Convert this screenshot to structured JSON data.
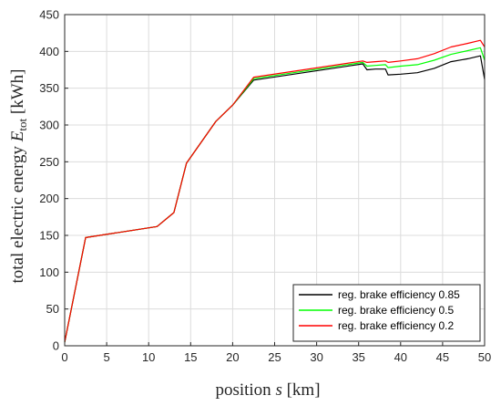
{
  "chart_data": {
    "type": "line",
    "title": "",
    "xlabel": {
      "prefix": "position ",
      "symbol": "s",
      "unit": " [km]"
    },
    "ylabel": {
      "prefix": "total electric energy ",
      "symbol": "E",
      "subscript": "tot",
      "unit": " [kWh]"
    },
    "xlim": [
      0,
      50
    ],
    "ylim": [
      0,
      450
    ],
    "xticks": [
      0,
      5,
      10,
      15,
      20,
      25,
      30,
      35,
      40,
      45,
      50
    ],
    "yticks": [
      0,
      50,
      100,
      150,
      200,
      250,
      300,
      350,
      400,
      450
    ],
    "grid": true,
    "legend": {
      "position": "bottom-right"
    },
    "series": [
      {
        "name": "reg. brake efficiency 0.85",
        "color": "#000000",
        "x": [
          0,
          2.5,
          11,
          13,
          14.5,
          18,
          20,
          22.5,
          35.5,
          36,
          37,
          38.2,
          38.5,
          40,
          42,
          44,
          46,
          48,
          49.5,
          50
        ],
        "y": [
          5,
          147,
          162,
          181,
          248,
          305,
          327,
          361,
          383,
          375,
          376,
          376,
          368,
          369,
          371,
          377,
          386,
          390,
          394,
          362
        ]
      },
      {
        "name": "reg. brake efficiency 0.5",
        "color": "#00ff00",
        "x": [
          0,
          2.5,
          11,
          13,
          14.5,
          18,
          20,
          22.5,
          35.5,
          36,
          37,
          38.2,
          38.5,
          40,
          42,
          44,
          46,
          48,
          49.5,
          50
        ],
        "y": [
          5,
          147,
          162,
          181,
          248,
          305,
          327,
          363,
          385,
          380,
          381,
          382,
          378,
          380,
          382,
          388,
          396,
          401,
          405,
          388
        ]
      },
      {
        "name": "reg. brake efficiency 0.2",
        "color": "#ff0000",
        "x": [
          0,
          2.5,
          11,
          13,
          14.5,
          18,
          20,
          22.5,
          35.5,
          36,
          37,
          38.2,
          38.5,
          40,
          42,
          44,
          46,
          48,
          49.5,
          50
        ],
        "y": [
          5,
          147,
          162,
          181,
          248,
          305,
          327,
          365,
          387,
          385,
          386,
          387,
          385,
          387,
          390,
          397,
          406,
          411,
          415,
          406
        ]
      }
    ]
  }
}
